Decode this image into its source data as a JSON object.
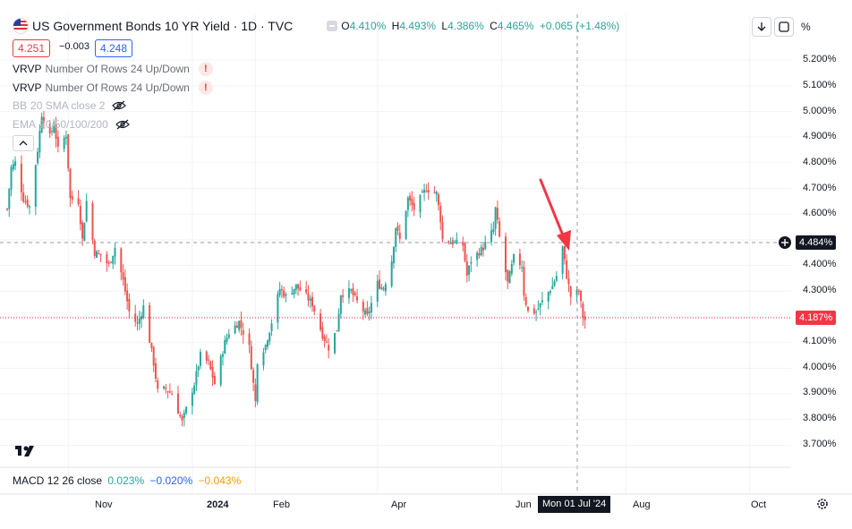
{
  "header": {
    "title": "US Government Bonds 10 YR Yield · 1D · TVC",
    "ohlc": [
      {
        "k": "O",
        "v": "4.410%"
      },
      {
        "k": "H",
        "v": "4.493%"
      },
      {
        "k": "L",
        "v": "4.386%"
      },
      {
        "k": "C",
        "v": "4.465%"
      }
    ],
    "change": "+0.065 (+1.48%)",
    "sell_price": "4.251",
    "spread": "−0.003",
    "buy_price": "4.248",
    "percent_button": "%"
  },
  "indicators": [
    {
      "name": "VRVP",
      "params": "Number Of Rows 24 Up/Down",
      "status": "!"
    },
    {
      "name": "VRVP",
      "params": "Number Of Rows 24 Up/Down",
      "status": "!"
    },
    {
      "name": "BB",
      "params": "20 SMA close 2",
      "status": "hidden"
    },
    {
      "name": "EMA",
      "params": "20/50/100/200",
      "status": "hidden"
    }
  ],
  "macd": {
    "label": "MACD",
    "params": "12 26 close",
    "v1": "0.023%",
    "v2": "−0.020%",
    "v3": "−0.043%"
  },
  "axis": {
    "y_ticks": [
      "5.200%",
      "5.100%",
      "5.000%",
      "4.900%",
      "4.800%",
      "4.700%",
      "4.600%",
      "4.400%",
      "4.300%",
      "4.100%",
      "4.000%",
      "3.900%",
      "3.800%",
      "3.700%"
    ],
    "x_ticks": [
      "Nov",
      "2024",
      "Feb",
      "Apr",
      "Jun",
      "Aug",
      "Oct"
    ],
    "crosshair_price": "4.484%",
    "crosshair_date": "Mon 01 Jul '24",
    "last_price": "4.187%"
  },
  "colors": {
    "up": "#26a69a",
    "down": "#ef5350",
    "arrow": "#f23645",
    "crosshair_tag": "#131722",
    "last_price_tag": "#f23645"
  },
  "chart_data": {
    "type": "candlestick",
    "title": "US Government Bonds 10 YR Yield · 1D · TVC",
    "ylim": [
      3.63,
      5.3
    ],
    "x_range": [
      "2023-10-02",
      "2024-10-31"
    ],
    "annotation": {
      "type": "arrow",
      "color": "red",
      "points_to": "2024-07-01"
    },
    "anchors": [
      [
        "2023-10-02",
        4.62
      ],
      [
        "2023-10-04",
        4.78
      ],
      [
        "2023-10-06",
        4.8
      ],
      [
        "2023-10-10",
        4.66
      ],
      [
        "2023-10-13",
        4.63
      ],
      [
        "2023-10-17",
        4.85
      ],
      [
        "2023-10-19",
        4.99
      ],
      [
        "2023-10-23",
        4.9
      ],
      [
        "2023-10-25",
        4.95
      ],
      [
        "2023-10-27",
        4.85
      ],
      [
        "2023-10-31",
        4.91
      ],
      [
        "2023-11-02",
        4.66
      ],
      [
        "2023-11-06",
        4.65
      ],
      [
        "2023-11-08",
        4.5
      ],
      [
        "2023-11-10",
        4.65
      ],
      [
        "2023-11-14",
        4.45
      ],
      [
        "2023-11-17",
        4.44
      ],
      [
        "2023-11-21",
        4.4
      ],
      [
        "2023-11-24",
        4.47
      ],
      [
        "2023-11-28",
        4.34
      ],
      [
        "2023-12-01",
        4.22
      ],
      [
        "2023-12-05",
        4.17
      ],
      [
        "2023-12-08",
        4.24
      ],
      [
        "2023-12-13",
        4.02
      ],
      [
        "2023-12-15",
        3.91
      ],
      [
        "2023-12-19",
        3.92
      ],
      [
        "2023-12-22",
        3.9
      ],
      [
        "2023-12-27",
        3.79
      ],
      [
        "2024-01-02",
        3.94
      ],
      [
        "2024-01-05",
        4.05
      ],
      [
        "2024-01-09",
        4.02
      ],
      [
        "2024-01-12",
        3.94
      ],
      [
        "2024-01-17",
        4.1
      ],
      [
        "2024-01-19",
        4.14
      ],
      [
        "2024-01-24",
        4.18
      ],
      [
        "2024-01-29",
        4.08
      ],
      [
        "2024-02-01",
        3.87
      ],
      [
        "2024-02-02",
        4.03
      ],
      [
        "2024-02-06",
        4.09
      ],
      [
        "2024-02-09",
        4.18
      ],
      [
        "2024-02-13",
        4.31
      ],
      [
        "2024-02-16",
        4.28
      ],
      [
        "2024-02-21",
        4.32
      ],
      [
        "2024-02-26",
        4.28
      ],
      [
        "2024-02-29",
        4.25
      ],
      [
        "2024-03-05",
        4.13
      ],
      [
        "2024-03-08",
        4.08
      ],
      [
        "2024-03-12",
        4.15
      ],
      [
        "2024-03-14",
        4.29
      ],
      [
        "2024-03-19",
        4.3
      ],
      [
        "2024-03-21",
        4.27
      ],
      [
        "2024-03-27",
        4.2
      ],
      [
        "2024-04-01",
        4.33
      ],
      [
        "2024-04-04",
        4.31
      ],
      [
        "2024-04-08",
        4.42
      ],
      [
        "2024-04-10",
        4.55
      ],
      [
        "2024-04-12",
        4.5
      ],
      [
        "2024-04-16",
        4.66
      ],
      [
        "2024-04-19",
        4.62
      ],
      [
        "2024-04-25",
        4.7
      ],
      [
        "2024-04-30",
        4.68
      ],
      [
        "2024-05-02",
        4.58
      ],
      [
        "2024-05-03",
        4.5
      ],
      [
        "2024-05-08",
        4.49
      ],
      [
        "2024-05-13",
        4.48
      ],
      [
        "2024-05-15",
        4.36
      ],
      [
        "2024-05-17",
        4.42
      ],
      [
        "2024-05-23",
        4.47
      ],
      [
        "2024-05-28",
        4.54
      ],
      [
        "2024-05-29",
        4.62
      ],
      [
        "2024-05-31",
        4.51
      ],
      [
        "2024-06-04",
        4.33
      ],
      [
        "2024-06-07",
        4.43
      ],
      [
        "2024-06-11",
        4.4
      ],
      [
        "2024-06-12",
        4.29
      ],
      [
        "2024-06-14",
        4.22
      ],
      [
        "2024-06-18",
        4.22
      ],
      [
        "2024-06-21",
        4.26
      ],
      [
        "2024-06-26",
        4.32
      ],
      [
        "2024-06-28",
        4.36
      ],
      [
        "2024-07-01",
        4.47
      ],
      [
        "2024-07-03",
        4.36
      ],
      [
        "2024-07-05",
        4.28
      ],
      [
        "2024-07-09",
        4.3
      ],
      [
        "2024-07-11",
        4.2
      ],
      [
        "2024-07-12",
        4.187
      ]
    ]
  }
}
